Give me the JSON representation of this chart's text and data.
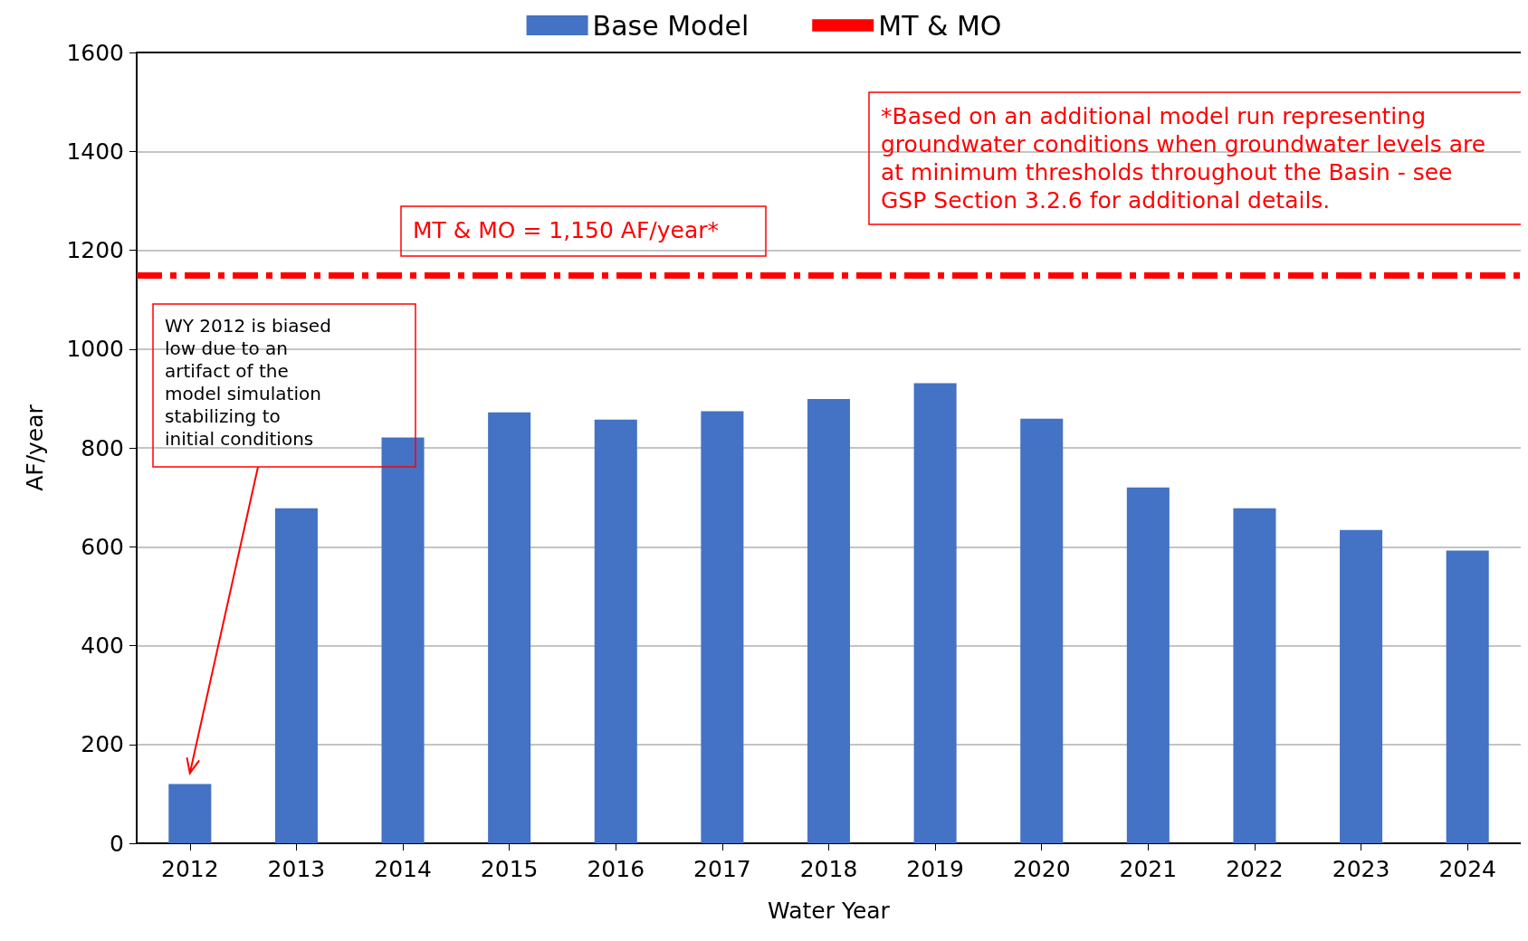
{
  "chart_data": {
    "type": "bar",
    "xlabel": "Water Year",
    "ylabel": "AF/year",
    "categories": [
      "2012",
      "2013",
      "2014",
      "2015",
      "2016",
      "2017",
      "2018",
      "2019",
      "2020",
      "2021",
      "2022",
      "2023",
      "2024"
    ],
    "series": [
      {
        "name": "Base Model",
        "color": "#4472c4",
        "values": [
          120,
          678,
          821,
          872,
          857,
          874,
          899,
          931,
          859,
          720,
          678,
          634,
          592
        ]
      }
    ],
    "ylim": [
      0,
      1600
    ],
    "yticks": [
      0,
      200,
      400,
      600,
      800,
      1000,
      1200,
      1400,
      1600
    ],
    "grid": "y",
    "legend": "top",
    "ref_lines": [
      {
        "axis": "y",
        "value": 1150,
        "label": "MT & MO",
        "color": "#ff0000",
        "line_style": "dashed"
      }
    ],
    "annotations": [
      "*Based on an additional model run representing groundwater conditions when groundwater levels are at minimum thresholds throughout the Basin - see GSP Section 3.2.6 for additional details.",
      "MT & MO = 1,150 AF/year*",
      "WY 2012 is biased low due to an artifact of the model simulation stabilizing to initial conditions"
    ]
  }
}
